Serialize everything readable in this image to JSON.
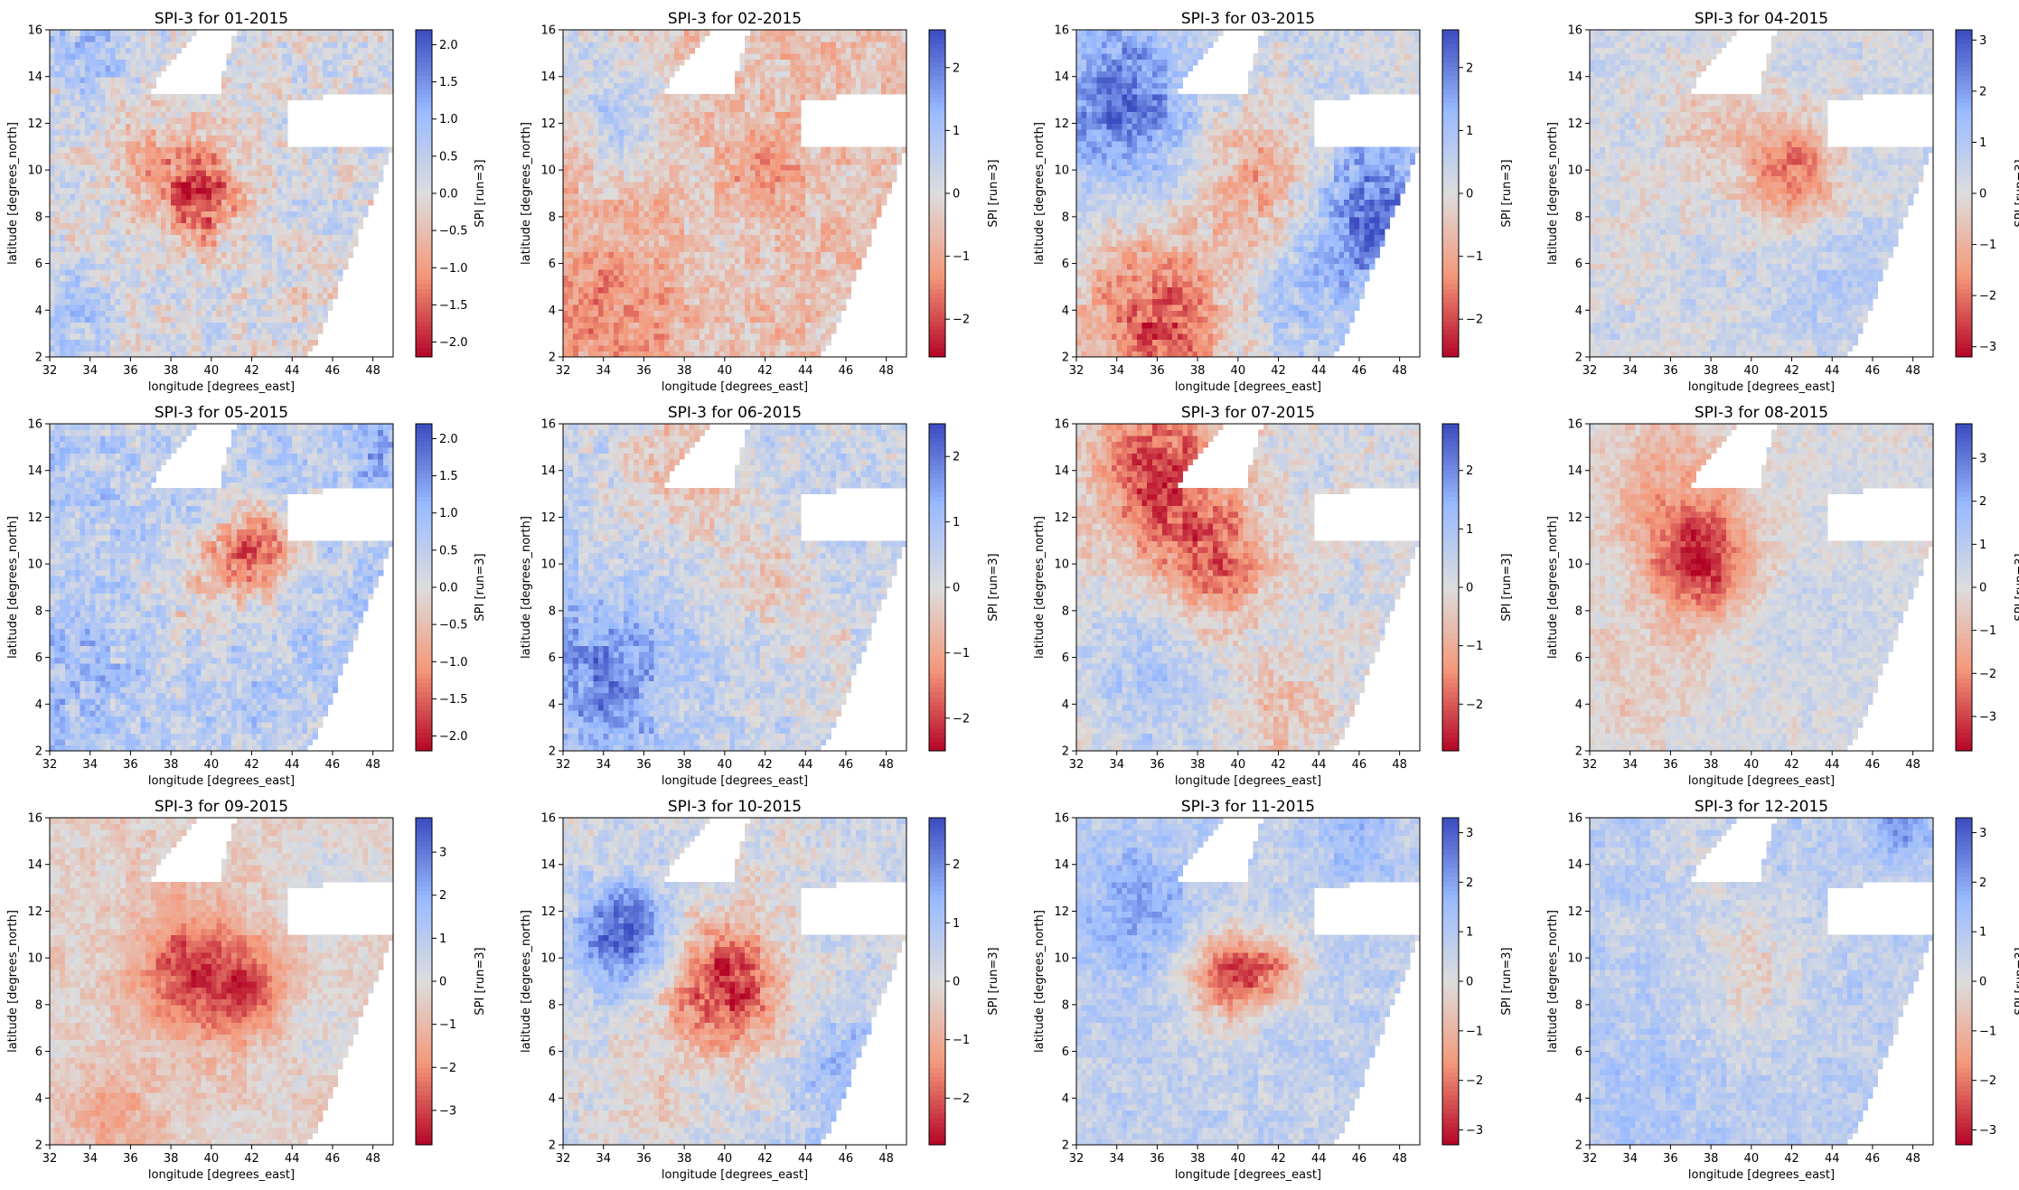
{
  "chart_data": {
    "type": "heatmap",
    "colormap": "coolwarm_r",
    "colormap_stops": [
      "#b40426",
      "#f4987a",
      "#dddddd",
      "#9abbff",
      "#3b4cc0"
    ],
    "xlabel": "longitude [degrees_east]",
    "ylabel": "latitude [degrees_north]",
    "colorbar_label": "SPI [run=3]",
    "xlim": [
      32,
      49
    ],
    "ylim": [
      2,
      16
    ],
    "xticks": [
      "32",
      "34",
      "36",
      "38",
      "40",
      "42",
      "44",
      "46",
      "48"
    ],
    "yticks": [
      "2",
      "4",
      "6",
      "8",
      "10",
      "12",
      "14",
      "16"
    ],
    "grid_resolution_deg": 0.25,
    "panels": [
      {
        "title": "SPI-3 for 01-2015",
        "vmin": -2.2,
        "vmax": 2.2,
        "cbar_ticks": [
          "−2.0",
          "−1.5",
          "−1.0",
          "−0.5",
          "0.0",
          "0.5",
          "1.0",
          "1.5",
          "2.0"
        ],
        "cbar_tick_values": [
          -2,
          -1.5,
          -1,
          -0.5,
          0,
          0.5,
          1,
          1.5,
          2
        ],
        "base": 0.15,
        "blobs": [
          {
            "lon": 39.5,
            "lat": 8.8,
            "amp": -1.6,
            "r": 1.3
          },
          {
            "lon": 38,
            "lat": 10,
            "amp": -0.8,
            "r": 2
          },
          {
            "lon": 33,
            "lat": 4,
            "amp": 0.9,
            "r": 1.2
          },
          {
            "lon": 34,
            "lat": 15,
            "amp": 0.7,
            "r": 1.5
          },
          {
            "lon": 44,
            "lat": 4,
            "amp": -0.3,
            "r": 1.5
          }
        ]
      },
      {
        "title": "SPI-3 for 02-2015",
        "vmin": -2.6,
        "vmax": 2.6,
        "cbar_ticks": [
          "−2",
          "−1",
          "0",
          "1",
          "2"
        ],
        "cbar_tick_values": [
          -2,
          -1,
          0,
          1,
          2
        ],
        "base": -0.55,
        "blobs": [
          {
            "lon": 42,
            "lat": 10,
            "amp": -0.9,
            "r": 1.2
          },
          {
            "lon": 35,
            "lat": 12,
            "amp": 1.3,
            "r": 1.3
          },
          {
            "lon": 33,
            "lat": 15,
            "amp": 0.9,
            "r": 2
          },
          {
            "lon": 34,
            "lat": 4,
            "amp": -0.8,
            "r": 2.5
          },
          {
            "lon": 40,
            "lat": 7,
            "amp": 0.3,
            "r": 1.5
          }
        ]
      },
      {
        "title": "SPI-3 for 03-2015",
        "vmin": -2.6,
        "vmax": 2.6,
        "cbar_ticks": [
          "−2",
          "−1",
          "0",
          "1",
          "2"
        ],
        "cbar_tick_values": [
          -2,
          -1,
          0,
          1,
          2
        ],
        "base": 0.2,
        "blobs": [
          {
            "lon": 34,
            "lat": 13,
            "amp": 2.0,
            "r": 2.5
          },
          {
            "lon": 36,
            "lat": 3.5,
            "amp": -2.2,
            "r": 2.5
          },
          {
            "lon": 41,
            "lat": 9.5,
            "amp": -1.3,
            "r": 2
          },
          {
            "lon": 47,
            "lat": 8,
            "amp": 2.0,
            "r": 2.5
          },
          {
            "lon": 43,
            "lat": 4,
            "amp": 0.6,
            "r": 2
          }
        ]
      },
      {
        "title": "SPI-3 for 04-2015",
        "vmin": -3.2,
        "vmax": 3.2,
        "cbar_ticks": [
          "−3",
          "−2",
          "−1",
          "0",
          "1",
          "2",
          "3"
        ],
        "cbar_tick_values": [
          -3,
          -2,
          -1,
          0,
          1,
          2,
          3
        ],
        "base": 0.35,
        "blobs": [
          {
            "lon": 42,
            "lat": 10,
            "amp": -2.3,
            "r": 1.6
          },
          {
            "lon": 38,
            "lat": 12,
            "amp": -0.8,
            "r": 2
          },
          {
            "lon": 33,
            "lat": 8,
            "amp": -0.4,
            "r": 2
          },
          {
            "lon": 44,
            "lat": 5,
            "amp": 0.6,
            "r": 2
          }
        ]
      },
      {
        "title": "SPI-3 for 05-2015",
        "vmin": -2.2,
        "vmax": 2.2,
        "cbar_ticks": [
          "−2.0",
          "−1.5",
          "−1.0",
          "−0.5",
          "0.0",
          "0.5",
          "1.0",
          "1.5",
          "2.0"
        ],
        "cbar_tick_values": [
          -2,
          -1.5,
          -1,
          -0.5,
          0,
          0.5,
          1,
          1.5,
          2
        ],
        "base": 0.55,
        "blobs": [
          {
            "lon": 42,
            "lat": 10.5,
            "amp": -2.3,
            "r": 1.4
          },
          {
            "lon": 39,
            "lat": 9,
            "amp": -0.7,
            "r": 1.5
          },
          {
            "lon": 33,
            "lat": 5,
            "amp": 0.4,
            "r": 2
          },
          {
            "lon": 48,
            "lat": 15,
            "amp": 0.6,
            "r": 1
          }
        ]
      },
      {
        "title": "SPI-3 for 06-2015",
        "vmin": -2.5,
        "vmax": 2.5,
        "cbar_ticks": [
          "−2",
          "−1",
          "0",
          "1",
          "2"
        ],
        "cbar_tick_values": [
          -2,
          -1,
          0,
          1,
          2
        ],
        "base": 0.4,
        "blobs": [
          {
            "lon": 34,
            "lat": 5,
            "amp": 1.4,
            "r": 2.5
          },
          {
            "lon": 38,
            "lat": 14,
            "amp": -1.1,
            "r": 2
          },
          {
            "lon": 42,
            "lat": 10,
            "amp": -0.8,
            "r": 1.5
          },
          {
            "lon": 45,
            "lat": 6,
            "amp": -0.4,
            "r": 2
          }
        ]
      },
      {
        "title": "SPI-3 for 07-2015",
        "vmin": -2.8,
        "vmax": 2.8,
        "cbar_ticks": [
          "−2",
          "−1",
          "0",
          "1",
          "2"
        ],
        "cbar_tick_values": [
          -2,
          -1,
          0,
          1,
          2
        ],
        "base": 0.2,
        "blobs": [
          {
            "lon": 36,
            "lat": 14,
            "amp": -2.4,
            "r": 2.5
          },
          {
            "lon": 39,
            "lat": 10,
            "amp": -1.8,
            "r": 2
          },
          {
            "lon": 36,
            "lat": 5,
            "amp": 0.9,
            "r": 2
          },
          {
            "lon": 42,
            "lat": 3,
            "amp": -0.8,
            "r": 2
          }
        ]
      },
      {
        "title": "SPI-3 for 08-2015",
        "vmin": -3.8,
        "vmax": 3.8,
        "cbar_ticks": [
          "−3",
          "−2",
          "−1",
          "0",
          "1",
          "2",
          "3"
        ],
        "cbar_tick_values": [
          -3,
          -2,
          -1,
          0,
          1,
          2,
          3
        ],
        "base": 0.15,
        "blobs": [
          {
            "lon": 37.5,
            "lat": 10,
            "amp": -3.2,
            "r": 1.7
          },
          {
            "lon": 36,
            "lat": 13,
            "amp": -1.5,
            "r": 2.5
          },
          {
            "lon": 34,
            "lat": 5,
            "amp": -0.8,
            "r": 2
          },
          {
            "lon": 44,
            "lat": 7,
            "amp": 0.5,
            "r": 2
          }
        ]
      },
      {
        "title": "SPI-3 for 09-2015",
        "vmin": -3.8,
        "vmax": 3.8,
        "cbar_ticks": [
          "−3",
          "−2",
          "−1",
          "0",
          "1",
          "2",
          "3"
        ],
        "cbar_tick_values": [
          -3,
          -2,
          -1,
          0,
          1,
          2,
          3
        ],
        "base": -0.4,
        "blobs": [
          {
            "lon": 39,
            "lat": 9.5,
            "amp": -2.6,
            "r": 2
          },
          {
            "lon": 42,
            "lat": 8.5,
            "amp": -2.2,
            "r": 1.3
          },
          {
            "lon": 35,
            "lat": 3,
            "amp": -1.2,
            "r": 1.5
          },
          {
            "lon": 46,
            "lat": 13,
            "amp": 0.8,
            "r": 1.5
          },
          {
            "lon": 45,
            "lat": 7,
            "amp": 0.6,
            "r": 1.5
          }
        ]
      },
      {
        "title": "SPI-3 for 10-2015",
        "vmin": -2.8,
        "vmax": 2.8,
        "cbar_ticks": [
          "−2",
          "−1",
          "0",
          "1",
          "2"
        ],
        "cbar_tick_values": [
          -2,
          -1,
          0,
          1,
          2
        ],
        "base": 0.3,
        "blobs": [
          {
            "lon": 40,
            "lat": 8.8,
            "amp": -2.8,
            "r": 2
          },
          {
            "lon": 35,
            "lat": 11,
            "amp": 2.3,
            "r": 1.6
          },
          {
            "lon": 36,
            "lat": 4,
            "amp": -0.6,
            "r": 2
          },
          {
            "lon": 46,
            "lat": 5,
            "amp": 1.0,
            "r": 2
          },
          {
            "lon": 42,
            "lat": 14,
            "amp": -0.3,
            "r": 1.5
          }
        ]
      },
      {
        "title": "SPI-3 for 11-2015",
        "vmin": -3.3,
        "vmax": 3.3,
        "cbar_ticks": [
          "−3",
          "−2",
          "−1",
          "0",
          "1",
          "2",
          "3"
        ],
        "cbar_tick_values": [
          -3,
          -2,
          -1,
          0,
          1,
          2,
          3
        ],
        "base": 0.7,
        "blobs": [
          {
            "lon": 39.5,
            "lat": 9.3,
            "amp": -3.2,
            "r": 1.4
          },
          {
            "lon": 42,
            "lat": 9.5,
            "amp": -1.8,
            "r": 1.1
          },
          {
            "lon": 35,
            "lat": 12,
            "amp": 1.2,
            "r": 2
          },
          {
            "lon": 46,
            "lat": 15,
            "amp": 0.8,
            "r": 1.5
          }
        ]
      },
      {
        "title": "SPI-3 for 12-2015",
        "vmin": -3.3,
        "vmax": 3.3,
        "cbar_ticks": [
          "−3",
          "−2",
          "−1",
          "0",
          "1",
          "2",
          "3"
        ],
        "cbar_tick_values": [
          -3,
          -2,
          -1,
          0,
          1,
          2,
          3
        ],
        "base": 0.8,
        "blobs": [
          {
            "lon": 40,
            "lat": 9.5,
            "amp": -1.1,
            "r": 2
          },
          {
            "lon": 47.5,
            "lat": 15.5,
            "amp": 1.4,
            "r": 1
          },
          {
            "lon": 34,
            "lat": 4,
            "amp": 0.4,
            "r": 2
          },
          {
            "lon": 38,
            "lat": 14,
            "amp": -0.5,
            "r": 1.5
          }
        ]
      }
    ]
  }
}
